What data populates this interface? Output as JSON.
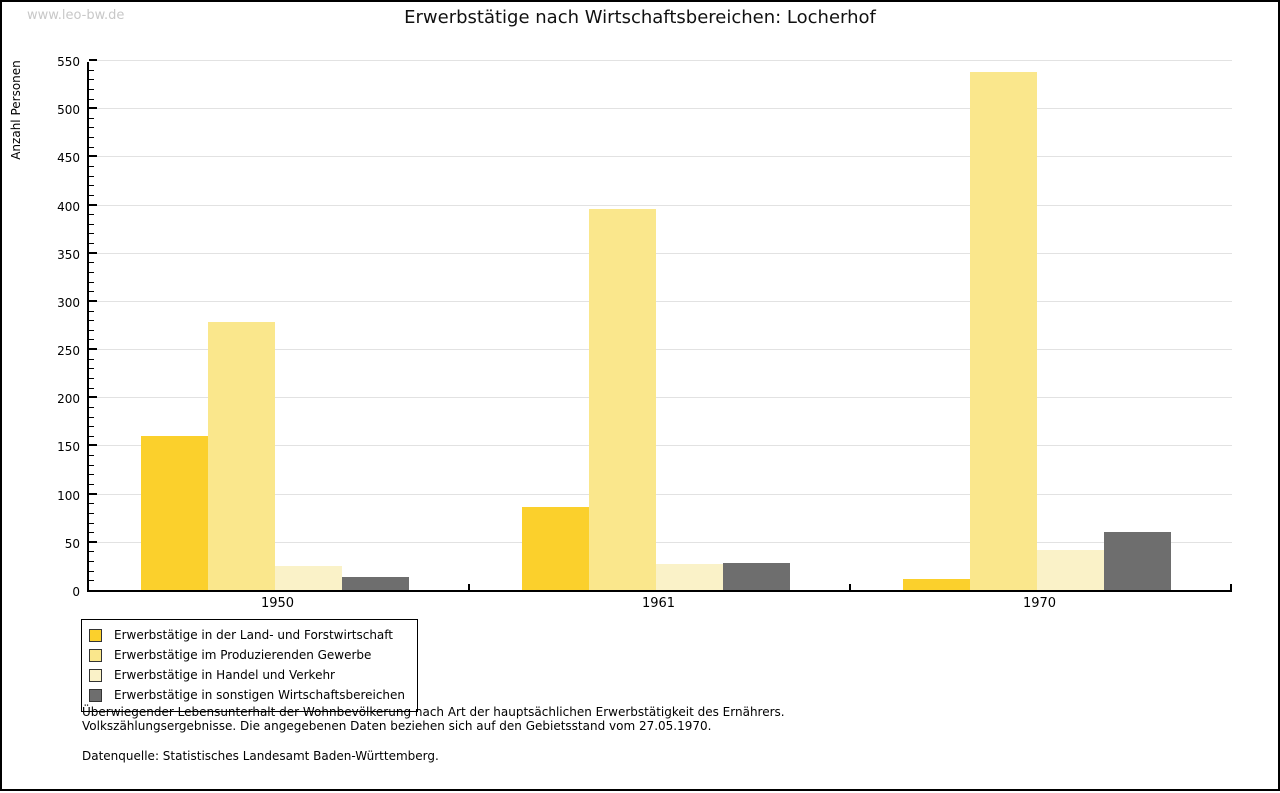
{
  "page": {
    "watermark": "www.leo-bw.de"
  },
  "chart_data": {
    "type": "bar",
    "title": "Erwerbstätige nach Wirtschaftsbereichen: Locherhof",
    "xlabel": "",
    "ylabel": "Anzahl Personen",
    "ylim": [
      0,
      550
    ],
    "ytick_step": 50,
    "ytick_minor_step": 10,
    "grid": true,
    "legend_position": "bottom-left",
    "categories": [
      "1950",
      "1961",
      "1970"
    ],
    "series": [
      {
        "name": "Erwerbstätige in der Land- und Forstwirtschaft",
        "color": "#FBD02C",
        "values": [
          160,
          86,
          11
        ]
      },
      {
        "name": "Erwerbstätige im Produzierenden Gewerbe",
        "color": "#FAE78C",
        "values": [
          278,
          395,
          538
        ]
      },
      {
        "name": "Erwerbstätige in Handel und Verkehr",
        "color": "#FAF2C8",
        "values": [
          25,
          27,
          42
        ]
      },
      {
        "name": "Erwerbstätige in sonstigen Wirtschaftsbereichen",
        "color": "#6E6E6E",
        "values": [
          14,
          28,
          60
        ]
      }
    ],
    "colors": {
      "gridline": "#e2e2e2",
      "axis": "#000000",
      "watermark": "#c8c8c8"
    }
  },
  "footnote": {
    "line1": "Überwiegender Lebensunterhalt der Wohnbevölkerung nach Art der hauptsächlichen Erwerbstätigkeit des Ernährers.",
    "line2": "Volkszählungsergebnisse. Die angegebenen Daten beziehen sich auf den Gebietsstand vom 27.05.1970.",
    "source": "Datenquelle: Statistisches Landesamt Baden-Württemberg."
  }
}
